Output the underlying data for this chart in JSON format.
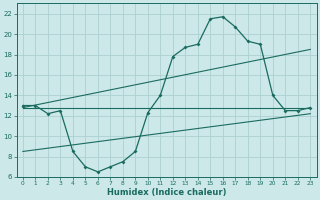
{
  "xlabel": "Humidex (Indice chaleur)",
  "bg_color": "#cce8e8",
  "line_color": "#1a6b60",
  "grid_color": "#aed0d0",
  "xlim": [
    -0.5,
    23.5
  ],
  "ylim": [
    6,
    23
  ],
  "yticks": [
    6,
    8,
    10,
    12,
    14,
    16,
    18,
    20,
    22
  ],
  "xticks": [
    0,
    1,
    2,
    3,
    4,
    5,
    6,
    7,
    8,
    9,
    10,
    11,
    12,
    13,
    14,
    15,
    16,
    17,
    18,
    19,
    20,
    21,
    22,
    23
  ],
  "main_x": [
    0,
    1,
    2,
    3,
    4,
    5,
    6,
    7,
    8,
    9,
    10,
    11,
    12,
    13,
    14,
    15,
    16,
    17,
    18,
    19,
    20,
    21,
    22,
    23
  ],
  "main_y": [
    13,
    13,
    12.2,
    12.5,
    8.5,
    7.0,
    6.5,
    7.0,
    7.5,
    8.5,
    12.3,
    14.0,
    17.8,
    18.7,
    19.0,
    21.5,
    21.7,
    20.7,
    19.3,
    19.0,
    14.0,
    12.5,
    12.5,
    12.8
  ],
  "trend1_x": [
    0,
    23
  ],
  "trend1_y": [
    12.8,
    12.8
  ],
  "trend2_x": [
    0,
    23
  ],
  "trend2_y": [
    8.5,
    12.2
  ],
  "trend3_x": [
    0,
    23
  ],
  "trend3_y": [
    12.8,
    18.5
  ]
}
